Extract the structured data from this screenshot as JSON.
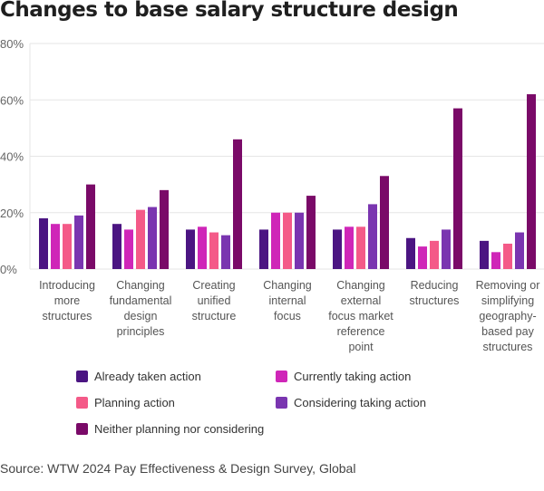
{
  "title": "Changes to base salary structure design",
  "source": "Source: WTW 2024 Pay Effectiveness & Design Survey, Global",
  "chart_data": {
    "type": "bar",
    "title": "Changes to base salary structure design",
    "xlabel": "",
    "ylabel": "",
    "ylim": [
      0,
      80
    ],
    "yticks": [
      0,
      20,
      40,
      60,
      80
    ],
    "ytick_labels": [
      "0%",
      "20%",
      "40%",
      "60%",
      "80%"
    ],
    "grid": true,
    "legend_position": "bottom",
    "categories": [
      [
        "Introducing",
        "more",
        "structures"
      ],
      [
        "Changing",
        "fundamental",
        "design",
        "principles"
      ],
      [
        "Creating",
        "unified",
        "structure"
      ],
      [
        "Changing",
        "internal",
        "focus"
      ],
      [
        "Changing",
        "external",
        "focus market",
        "reference",
        "point"
      ],
      [
        "Reducing",
        "structures"
      ],
      [
        "Removing or",
        "simplifying",
        "geography-",
        "based pay",
        "structures"
      ]
    ],
    "series": [
      {
        "name": "Already taken action",
        "color": "#4B1582",
        "values": [
          18,
          16,
          14,
          14,
          14,
          11,
          10
        ]
      },
      {
        "name": "Currently taking action",
        "color": "#CF26B8",
        "values": [
          16,
          14,
          15,
          20,
          15,
          8,
          6
        ]
      },
      {
        "name": "Planning action",
        "color": "#F45A88",
        "values": [
          16,
          21,
          13,
          20,
          15,
          10,
          9
        ]
      },
      {
        "name": "Considering taking action",
        "color": "#7A35B0",
        "values": [
          19,
          22,
          12,
          20,
          23,
          14,
          13
        ]
      },
      {
        "name": "Neither planning nor considering",
        "color": "#7A0A68",
        "values": [
          30,
          28,
          46,
          26,
          33,
          57,
          62
        ]
      }
    ]
  }
}
